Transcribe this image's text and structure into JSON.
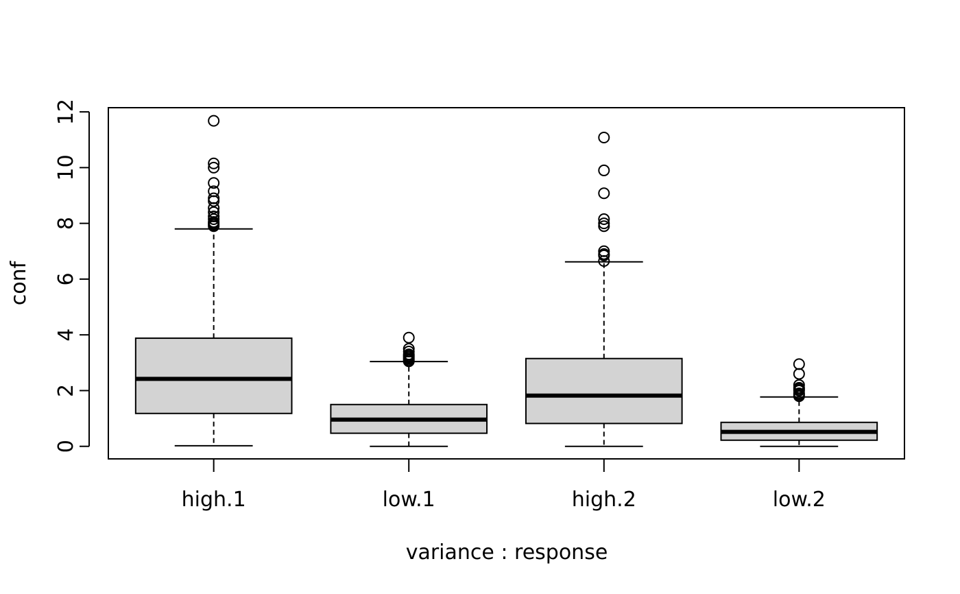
{
  "chart_data": {
    "type": "boxplot",
    "title": "",
    "xlabel": "variance : response",
    "ylabel": "conf",
    "ylim": [
      -0.45,
      12.15
    ],
    "yticks": [
      0,
      2,
      4,
      6,
      8,
      10,
      12
    ],
    "ytick_labels": [
      "0",
      "2",
      "4",
      "6",
      "8",
      "10",
      "12"
    ],
    "categories": [
      "high.1",
      "low.1",
      "high.2",
      "low.2"
    ],
    "box_fill": "#d3d3d3",
    "boxes": [
      {
        "name": "high.1",
        "whisker_low": 0.02,
        "q1": 1.18,
        "median": 2.42,
        "q3": 3.88,
        "whisker_high": 7.8,
        "outliers": [
          7.9,
          7.95,
          8.0,
          8.05,
          8.15,
          8.25,
          8.4,
          8.55,
          8.8,
          8.9,
          9.15,
          9.45,
          10.0,
          10.15,
          11.68
        ]
      },
      {
        "name": "low.1",
        "whisker_low": 0.0,
        "q1": 0.47,
        "median": 0.96,
        "q3": 1.5,
        "whisker_high": 3.04,
        "outliers": [
          3.05,
          3.1,
          3.15,
          3.2,
          3.25,
          3.3,
          3.4,
          3.5,
          3.9
        ]
      },
      {
        "name": "high.2",
        "whisker_low": 0.0,
        "q1": 0.82,
        "median": 1.82,
        "q3": 3.15,
        "whisker_high": 6.62,
        "outliers": [
          6.65,
          6.85,
          6.9,
          7.0,
          7.9,
          8.0,
          8.15,
          9.08,
          9.9,
          11.08
        ]
      },
      {
        "name": "low.2",
        "whisker_low": 0.0,
        "q1": 0.22,
        "median": 0.52,
        "q3": 0.86,
        "whisker_high": 1.77,
        "outliers": [
          1.8,
          1.85,
          1.9,
          2.0,
          2.05,
          2.1,
          2.2,
          2.6,
          2.95
        ]
      }
    ]
  }
}
